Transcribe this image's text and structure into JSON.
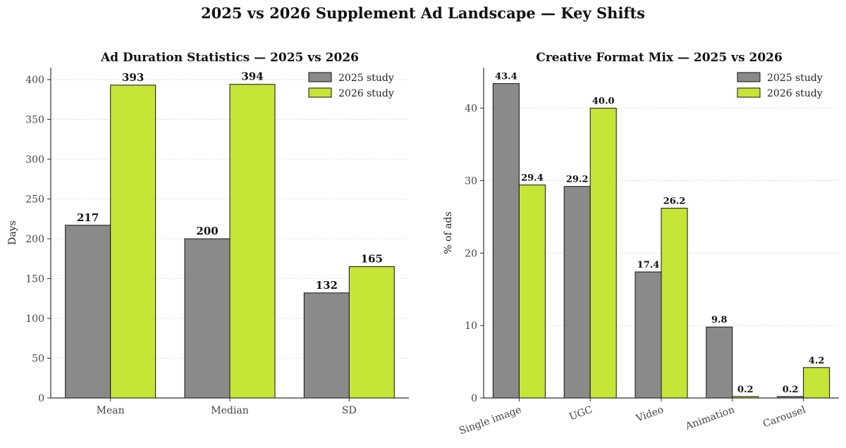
{
  "figure": {
    "title": "2025 vs 2026 Supplement Ad Landscape — Key Shifts"
  },
  "colors": {
    "series_2025": "#8a8a8a",
    "series_2026": "#c5e537",
    "edge": "#111111",
    "grid": "#c8c8c8"
  },
  "chart_data": [
    {
      "type": "bar",
      "title": "Ad Duration Statistics — 2025 vs 2026",
      "xlabel": "",
      "ylabel": "Days",
      "categories": [
        "Mean",
        "Median",
        "SD"
      ],
      "series": [
        {
          "name": "2025 study",
          "values": [
            217,
            200,
            132
          ],
          "labels": [
            "217",
            "200",
            "132"
          ]
        },
        {
          "name": "2026 study",
          "values": [
            393,
            394,
            165
          ],
          "labels": [
            "393",
            "394",
            "165"
          ]
        }
      ],
      "ylim": [
        0,
        415
      ],
      "yticks": [
        0,
        50,
        100,
        150,
        200,
        250,
        300,
        350,
        400
      ],
      "grid": "horizontal dotted",
      "legend": "top-right"
    },
    {
      "type": "bar",
      "title": "Creative Format Mix — 2025 vs 2026",
      "xlabel": "",
      "ylabel": "% of ads",
      "categories": [
        "Single image",
        "UGC",
        "Video",
        "Animation",
        "Carousel"
      ],
      "series": [
        {
          "name": "2025 study",
          "values": [
            43.4,
            29.2,
            17.4,
            9.8,
            0.2
          ],
          "labels": [
            "43.4",
            "29.2",
            "17.4",
            "9.8",
            "0.2"
          ]
        },
        {
          "name": "2026 study",
          "values": [
            29.4,
            40.0,
            26.2,
            0.2,
            4.2
          ],
          "labels": [
            "29.4",
            "40.0",
            "26.2",
            "0.2",
            "4.2"
          ]
        }
      ],
      "ylim": [
        0,
        45.6
      ],
      "yticks": [
        0,
        10,
        20,
        30,
        40
      ],
      "grid": "horizontal dotted",
      "legend": "top-right"
    }
  ]
}
